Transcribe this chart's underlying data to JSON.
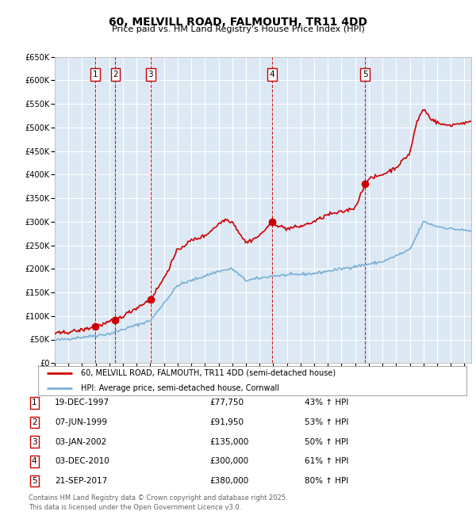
{
  "title": "60, MELVILL ROAD, FALMOUTH, TR11 4DD",
  "subtitle": "Price paid vs. HM Land Registry's House Price Index (HPI)",
  "background_color": "#ffffff",
  "plot_bg_color": "#dce9f5",
  "red_line_color": "#cc0000",
  "blue_line_color": "#7ab0d4",
  "grid_color": "#ffffff",
  "dashed_line_color": "#cc0000",
  "sale_dates_num": [
    1997.97,
    1999.44,
    2002.01,
    2010.92,
    2017.73
  ],
  "sale_prices": [
    77750,
    91950,
    135000,
    300000,
    380000
  ],
  "sale_labels": [
    "1",
    "2",
    "3",
    "4",
    "5"
  ],
  "legend_entries": [
    "60, MELVILL ROAD, FALMOUTH, TR11 4DD (semi-detached house)",
    "HPI: Average price, semi-detached house, Cornwall"
  ],
  "table_data": [
    [
      "1",
      "19-DEC-1997",
      "£77,750",
      "43% ↑ HPI"
    ],
    [
      "2",
      "07-JUN-1999",
      "£91,950",
      "53% ↑ HPI"
    ],
    [
      "3",
      "03-JAN-2002",
      "£135,000",
      "50% ↑ HPI"
    ],
    [
      "4",
      "03-DEC-2010",
      "£300,000",
      "61% ↑ HPI"
    ],
    [
      "5",
      "21-SEP-2017",
      "£380,000",
      "80% ↑ HPI"
    ]
  ],
  "footnote": "Contains HM Land Registry data © Crown copyright and database right 2025.\nThis data is licensed under the Open Government Licence v3.0.",
  "ylim": [
    0,
    650000
  ],
  "yticks": [
    0,
    50000,
    100000,
    150000,
    200000,
    250000,
    300000,
    350000,
    400000,
    450000,
    500000,
    550000,
    600000,
    650000
  ],
  "xmin": 1995.0,
  "xmax": 2025.5
}
